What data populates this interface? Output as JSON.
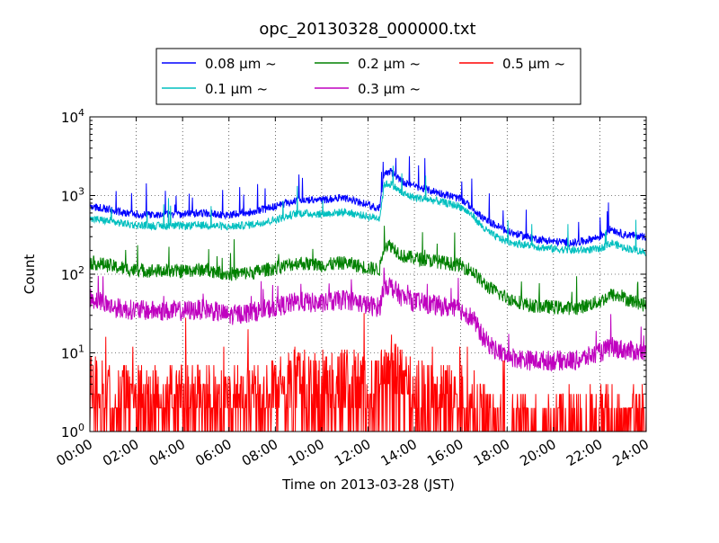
{
  "chart_data": {
    "type": "line",
    "title": "opc_20130328_000000.txt",
    "xlabel": "Time on 2013-03-28 (JST)",
    "ylabel": "Count",
    "y_scale": "log",
    "ylim": [
      1,
      10000
    ],
    "xlim_hours": [
      0,
      24
    ],
    "x_ticks": [
      "00:00",
      "02:00",
      "04:00",
      "06:00",
      "08:00",
      "10:00",
      "12:00",
      "14:00",
      "16:00",
      "18:00",
      "20:00",
      "22:00",
      "24:00"
    ],
    "y_ticks": [
      {
        "base": "10",
        "exp": "0"
      },
      {
        "base": "10",
        "exp": "1"
      },
      {
        "base": "10",
        "exp": "2"
      },
      {
        "base": "10",
        "exp": "3"
      },
      {
        "base": "10",
        "exp": "4"
      }
    ],
    "grid": true,
    "legend_position": "top-center",
    "x_hours": [
      0,
      0.5,
      1,
      1.5,
      2,
      3,
      4,
      5,
      6,
      7,
      8,
      9,
      10,
      11,
      11.5,
      12,
      12.5,
      12.7,
      13,
      13.5,
      14,
      15,
      16,
      16.5,
      17,
      17.5,
      18,
      19,
      20,
      21,
      22,
      22.5,
      23,
      24
    ],
    "series": [
      {
        "name": "0.08 μm ~",
        "color": "#0000ff",
        "values": [
          720,
          700,
          640,
          600,
          580,
          570,
          580,
          600,
          560,
          620,
          720,
          900,
          880,
          950,
          850,
          750,
          700,
          2000,
          2000,
          1500,
          1300,
          1100,
          900,
          700,
          500,
          420,
          350,
          290,
          260,
          250,
          300,
          380,
          320,
          300
        ]
      },
      {
        "name": "0.1 μm ~",
        "color": "#00bfbf",
        "values": [
          500,
          490,
          460,
          440,
          420,
          410,
          410,
          420,
          400,
          430,
          490,
          600,
          580,
          620,
          580,
          540,
          520,
          1400,
          1400,
          1050,
          950,
          850,
          720,
          560,
          380,
          300,
          260,
          230,
          210,
          200,
          210,
          250,
          220,
          190
        ]
      },
      {
        "name": "0.2 μm ~",
        "color": "#008000",
        "values": [
          140,
          135,
          125,
          118,
          112,
          110,
          110,
          115,
          100,
          105,
          120,
          140,
          130,
          140,
          130,
          120,
          115,
          240,
          230,
          170,
          160,
          145,
          130,
          110,
          75,
          60,
          50,
          40,
          38,
          37,
          45,
          55,
          50,
          40
        ]
      },
      {
        "name": "0.3 μm ~",
        "color": "#bf00bf",
        "values": [
          50,
          45,
          38,
          36,
          35,
          34,
          34,
          36,
          30,
          33,
          38,
          45,
          42,
          48,
          45,
          40,
          38,
          75,
          70,
          50,
          45,
          40,
          35,
          28,
          15,
          11,
          9,
          8,
          8,
          8,
          10,
          12,
          11,
          10
        ]
      },
      {
        "name": "0.5 μm ~",
        "color": "#ff0000",
        "values": [
          3,
          3,
          2.5,
          2.5,
          2.5,
          2.5,
          2.5,
          2.5,
          2.5,
          2.5,
          3,
          4,
          3.5,
          4,
          3.5,
          3,
          3,
          7,
          6,
          4,
          3,
          2.5,
          2.5,
          2,
          1.5,
          1.2,
          1.1,
          1.1,
          1.1,
          1.1,
          1.2,
          1.4,
          1.3,
          1.2
        ]
      }
    ]
  }
}
